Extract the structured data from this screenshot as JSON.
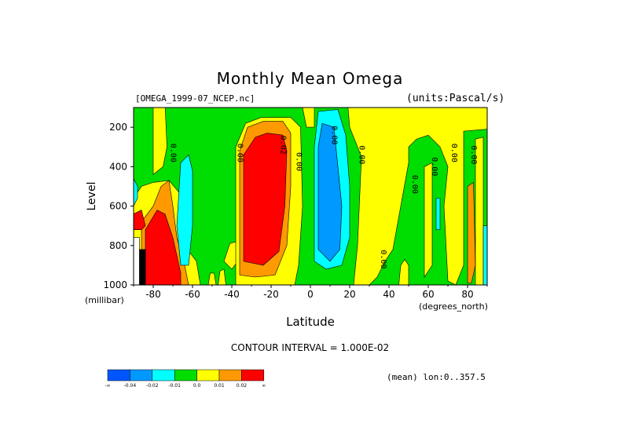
{
  "title": "Monthly Mean Omega",
  "file_label": "[OMEGA_1999-07_NCEP.nc]",
  "units_label": "(units:Pascal/s)",
  "contour_interval": "CONTOUR INTERVAL = 1.000E-02",
  "mean_label": "(mean) lon:0..357.5",
  "chart_data": {
    "type": "heatmap",
    "title": "Monthly Mean Omega",
    "xlabel": "Latitude",
    "ylabel": "Level",
    "x_unit": "(degrees_north)",
    "y_unit": "(millibar)",
    "xlim": [
      -90,
      90
    ],
    "ylim": [
      1000,
      100
    ],
    "x_ticks": [
      -80,
      -60,
      -40,
      -20,
      0,
      20,
      40,
      60,
      80
    ],
    "y_ticks": [
      200,
      400,
      600,
      800,
      1000
    ],
    "x_tick_labels": [
      "-80",
      "-60",
      "-40",
      "-20",
      "0",
      "20",
      "40",
      "60",
      "80"
    ],
    "y_tick_labels": [
      "200",
      "400",
      "600",
      "800",
      "1000"
    ],
    "contour_labels": [
      {
        "text": "0.00",
        "lat": -71,
        "level": 330
      },
      {
        "text": "0.00",
        "lat": -37,
        "level": 330
      },
      {
        "text": "0.02",
        "lat": -15,
        "level": 290
      },
      {
        "text": "0.00",
        "lat": -7,
        "level": 375
      },
      {
        "text": "0.00",
        "lat": 25,
        "level": 340
      },
      {
        "text": "0.00",
        "lat": 36,
        "level": 870
      },
      {
        "text": "0.00",
        "lat": 52,
        "level": 490
      },
      {
        "text": "0.00",
        "lat": 62,
        "level": 400
      },
      {
        "text": "0.00",
        "lat": 72,
        "level": 330
      },
      {
        "text": "0.00",
        "lat": 82,
        "level": 340
      },
      {
        "text": "0.00",
        "lat": 11,
        "level": 240
      }
    ],
    "regions": [
      {
        "name": "green background",
        "value": "(-0.01, 0.0)",
        "color": "#00DD00",
        "points": [
          [
            -90,
            80
          ],
          [
            90,
            80
          ],
          [
            90,
            1000
          ],
          [
            -90,
            1000
          ]
        ]
      },
      {
        "name": "yellow S polar",
        "value": "(0.0, 0.01)",
        "color": "#FFFF00",
        "points": [
          [
            -90,
            560
          ],
          [
            -86,
            500
          ],
          [
            -80,
            480
          ],
          [
            -72,
            470
          ],
          [
            -66,
            540
          ],
          [
            -62,
            620
          ],
          [
            -64,
            800
          ],
          [
            -58,
            880
          ],
          [
            -56,
            1000
          ],
          [
            -90,
            1000
          ]
        ]
      },
      {
        "name": "yellow narrow -78",
        "value": "(0.0, 0.01)",
        "color": "#FFFF00",
        "points": [
          [
            -80,
            80
          ],
          [
            -74,
            80
          ],
          [
            -73,
            300
          ],
          [
            -75,
            400
          ],
          [
            -80,
            440
          ]
        ]
      },
      {
        "name": "yellow -50 blobs",
        "value": "(0.0, 0.01)",
        "color": "#FFFF00",
        "points": [
          [
            -52,
            1000
          ],
          [
            -51,
            940
          ],
          [
            -49,
            940
          ],
          [
            -48,
            1000
          ]
        ]
      },
      {
        "name": "yellow -45 blob",
        "value": "(0.0, 0.01)",
        "color": "#FFFF00",
        "points": [
          [
            -47,
            1000
          ],
          [
            -46,
            930
          ],
          [
            -44,
            920
          ],
          [
            -43,
            1000
          ]
        ]
      },
      {
        "name": "yellow -40 ridge",
        "value": "(0.0, 0.01)",
        "color": "#FFFF00",
        "points": [
          [
            -44,
            880
          ],
          [
            -41,
            790
          ],
          [
            -38,
            780
          ],
          [
            -37,
            880
          ],
          [
            -40,
            920
          ]
        ]
      },
      {
        "name": "yellow -30 band",
        "value": "(0.0, 0.01)",
        "color": "#FFFF00",
        "points": [
          [
            -38,
            1000
          ],
          [
            -38,
            300
          ],
          [
            -33,
            180
          ],
          [
            -25,
            150
          ],
          [
            -10,
            150
          ],
          [
            -5,
            200
          ],
          [
            -4,
            600
          ],
          [
            -6,
            900
          ],
          [
            -8,
            1000
          ]
        ]
      },
      {
        "name": "yellow 0 sliver",
        "value": "(0.0, 0.01)",
        "color": "#FFFF00",
        "points": [
          [
            -4,
            100
          ],
          [
            2,
            100
          ],
          [
            2,
            200
          ],
          [
            -2,
            200
          ]
        ]
      },
      {
        "name": "yellow east",
        "value": "(0.0, 0.01)",
        "color": "#FFFF00",
        "points": [
          [
            19,
            80
          ],
          [
            90,
            80
          ],
          [
            90,
            210
          ],
          [
            78,
            220
          ],
          [
            78,
            900
          ],
          [
            74,
            1000
          ],
          [
            70,
            980
          ],
          [
            68,
            600
          ],
          [
            70,
            400
          ],
          [
            66,
            300
          ],
          [
            60,
            240
          ],
          [
            54,
            260
          ],
          [
            50,
            300
          ],
          [
            50,
            380
          ],
          [
            46,
            600
          ],
          [
            42,
            820
          ],
          [
            38,
            880
          ],
          [
            34,
            960
          ],
          [
            30,
            1000
          ],
          [
            22,
            1000
          ],
          [
            24,
            800
          ],
          [
            26,
            350
          ],
          [
            20,
            200
          ]
        ]
      },
      {
        "name": "yellow 57 strip",
        "value": "(0.0, 0.01)",
        "color": "#FFFF00",
        "points": [
          [
            58,
            400
          ],
          [
            62,
            380
          ],
          [
            62,
            900
          ],
          [
            58,
            960
          ]
        ]
      },
      {
        "name": "yellow 86 strip",
        "value": "(0.0, 0.01)",
        "color": "#FFFF00",
        "points": [
          [
            84,
            260
          ],
          [
            88,
            250
          ],
          [
            88,
            1000
          ],
          [
            84,
            1000
          ]
        ]
      },
      {
        "name": "yellow 50 low",
        "value": "(0.0, 0.01)",
        "color": "#FFFF00",
        "points": [
          [
            46,
            900
          ],
          [
            48,
            870
          ],
          [
            50,
            900
          ],
          [
            50,
            1000
          ],
          [
            45,
            1000
          ]
        ]
      },
      {
        "name": "orange S polar",
        "value": "(0.01, 0.02)",
        "color": "#FF9900",
        "points": [
          [
            -86,
            1000
          ],
          [
            -86,
            680
          ],
          [
            -80,
            600
          ],
          [
            -76,
            500
          ],
          [
            -72,
            470
          ],
          [
            -70,
            600
          ],
          [
            -68,
            760
          ],
          [
            -64,
            900
          ],
          [
            -62,
            1000
          ]
        ]
      },
      {
        "name": "orange -30 core",
        "value": "(0.01, 0.02)",
        "color": "#FF9900",
        "points": [
          [
            -36,
            950
          ],
          [
            -36,
            320
          ],
          [
            -32,
            200
          ],
          [
            -24,
            170
          ],
          [
            -14,
            170
          ],
          [
            -10,
            230
          ],
          [
            -10,
            500
          ],
          [
            -12,
            800
          ],
          [
            -18,
            950
          ],
          [
            -28,
            960
          ]
        ]
      },
      {
        "name": "orange 80 strip",
        "value": "(0.01, 0.02)",
        "color": "#FF9900",
        "points": [
          [
            80,
            500
          ],
          [
            83,
            480
          ],
          [
            84,
            900
          ],
          [
            82,
            990
          ],
          [
            80,
            990
          ]
        ]
      },
      {
        "name": "red -30 core",
        "value": "(>0.02)",
        "color": "#FF0000",
        "points": [
          [
            -34,
            880
          ],
          [
            -34,
            340
          ],
          [
            -28,
            250
          ],
          [
            -22,
            230
          ],
          [
            -14,
            240
          ],
          [
            -12,
            320
          ],
          [
            -13,
            600
          ],
          [
            -16,
            830
          ],
          [
            -24,
            900
          ]
        ]
      },
      {
        "name": "red S polar",
        "value": "(>0.02)",
        "color": "#FF0000",
        "points": [
          [
            -84,
            1000
          ],
          [
            -84,
            720
          ],
          [
            -78,
            620
          ],
          [
            -74,
            640
          ],
          [
            -70,
            760
          ],
          [
            -66,
            940
          ],
          [
            -66,
            1000
          ]
        ]
      },
      {
        "name": "red -88 corner",
        "value": "(>0.02)",
        "color": "#FF0000",
        "points": [
          [
            -90,
            640
          ],
          [
            -86,
            620
          ],
          [
            -84,
            700
          ],
          [
            -86,
            720
          ],
          [
            -90,
            720
          ]
        ]
      },
      {
        "name": "cyan -65",
        "value": "(-0.02, -0.01)",
        "color": "#00FFFF",
        "points": [
          [
            -68,
            700
          ],
          [
            -66,
            380
          ],
          [
            -62,
            340
          ],
          [
            -60,
            420
          ],
          [
            -60,
            700
          ],
          [
            -62,
            900
          ],
          [
            -66,
            900
          ]
        ]
      },
      {
        "name": "cyan -90 edge",
        "value": "(-0.02, -0.01)",
        "color": "#00FFFF",
        "points": [
          [
            -90,
            460
          ],
          [
            -88,
            500
          ],
          [
            -88,
            560
          ],
          [
            -90,
            600
          ]
        ]
      },
      {
        "name": "cyan equator",
        "value": "(-0.02, -0.01)",
        "color": "#00FFFF",
        "points": [
          [
            2,
            880
          ],
          [
            2,
            300
          ],
          [
            4,
            120
          ],
          [
            14,
            110
          ],
          [
            18,
            240
          ],
          [
            20,
            500
          ],
          [
            20,
            760
          ],
          [
            16,
            900
          ],
          [
            8,
            920
          ]
        ]
      },
      {
        "name": "cyan 64",
        "value": "(-0.02, -0.01)",
        "color": "#00FFFF",
        "points": [
          [
            64,
            560
          ],
          [
            66,
            560
          ],
          [
            66,
            720
          ],
          [
            64,
            720
          ]
        ]
      },
      {
        "name": "cyan 89",
        "value": "(-0.02, -0.01)",
        "color": "#00FFFF",
        "points": [
          [
            88,
            700
          ],
          [
            90,
            700
          ],
          [
            90,
            1000
          ],
          [
            88,
            1000
          ]
        ]
      },
      {
        "name": "blue equator",
        "value": "(-0.04, -0.02)",
        "color": "#0099FF",
        "points": [
          [
            4,
            820
          ],
          [
            4,
            300
          ],
          [
            6,
            180
          ],
          [
            12,
            200
          ],
          [
            14,
            400
          ],
          [
            16,
            600
          ],
          [
            15,
            820
          ],
          [
            10,
            880
          ]
        ]
      },
      {
        "name": "white S polar",
        "value": "missing",
        "color": "#FFFFFF",
        "points": [
          [
            -90,
            760
          ],
          [
            -87,
            760
          ],
          [
            -87,
            1000
          ],
          [
            -90,
            1000
          ]
        ]
      },
      {
        "name": "black S polar",
        "value": "missing",
        "color": "#000000",
        "points": [
          [
            -87,
            820
          ],
          [
            -84,
            820
          ],
          [
            -84,
            1000
          ],
          [
            -87,
            1000
          ]
        ]
      }
    ],
    "colorbar": {
      "colors": [
        "#0055FF",
        "#0099FF",
        "#00FFFF",
        "#00DD00",
        "#FFFF00",
        "#FF9900",
        "#FF0000"
      ],
      "labels": [
        "-∞",
        "-0.04",
        "-0.02",
        "-0.01",
        "0.0",
        "0.01",
        "0.02",
        "∞"
      ]
    }
  }
}
